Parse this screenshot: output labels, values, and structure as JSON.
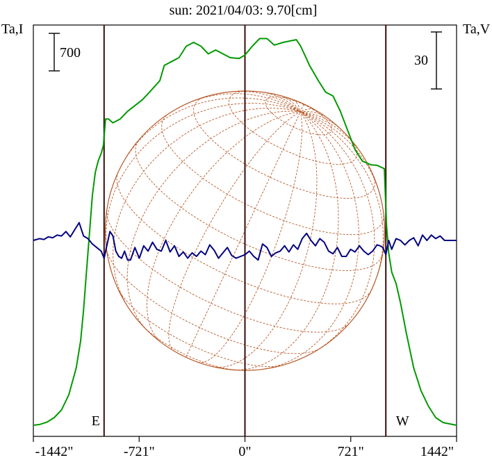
{
  "chart_data": {
    "type": "line",
    "title": "sun: 2021/04/03: 9.70[cm]",
    "left_axis_label": "Ta,I",
    "right_axis_label": "Ta,V",
    "scale_bar_left": "700",
    "scale_bar_right": "30",
    "x_unit": "arcsec",
    "xlim": [
      -1442,
      1442
    ],
    "x_ticks": [
      {
        "value": -1442,
        "label": "-1442\""
      },
      {
        "value": -721,
        "label": "-721\""
      },
      {
        "value": 0,
        "label": "0\""
      },
      {
        "value": 721,
        "label": "721\""
      },
      {
        "value": 1442,
        "label": "1442\""
      }
    ],
    "limb_markers": [
      {
        "value": -960,
        "label": "E"
      },
      {
        "value": 960,
        "label": "W"
      }
    ],
    "colors": {
      "stokes_i": "#009900",
      "stokes_v": "#000080",
      "disk_grid": "#b85a2a",
      "limb_lines": "#3a0a0a",
      "title": "#1a1a8c"
    },
    "series": [
      {
        "name": "Stokes I (Ta,I)",
        "color": "#009900",
        "y_unit": "relative (0 = baseline, 1 = peak)",
        "x": [
          -1442,
          -1400,
          -1350,
          -1300,
          -1250,
          -1200,
          -1150,
          -1120,
          -1100,
          -1080,
          -1060,
          -1040,
          -1020,
          -1000,
          -980,
          -965,
          -950,
          -930,
          -900,
          -850,
          -800,
          -700,
          -650,
          -580,
          -550,
          -450,
          -400,
          -350,
          -300,
          -250,
          -200,
          -100,
          -40,
          0,
          50,
          100,
          150,
          200,
          260,
          350,
          380,
          440,
          500,
          550,
          600,
          650,
          700,
          750,
          800,
          860,
          900,
          950,
          965,
          980,
          1000,
          1030,
          1060,
          1100,
          1150,
          1200,
          1250,
          1300,
          1350,
          1442
        ],
        "y": [
          0.0,
          0.002,
          0.008,
          0.02,
          0.04,
          0.08,
          0.15,
          0.22,
          0.3,
          0.4,
          0.5,
          0.6,
          0.66,
          0.69,
          0.71,
          0.73,
          0.8,
          0.8,
          0.79,
          0.8,
          0.82,
          0.85,
          0.87,
          0.9,
          0.94,
          0.96,
          0.99,
          1.0,
          0.99,
          0.97,
          0.98,
          0.96,
          0.958,
          0.967,
          0.99,
          1.01,
          1.01,
          0.993,
          1.0,
          1.007,
          0.99,
          0.94,
          0.9,
          0.87,
          0.86,
          0.82,
          0.77,
          0.72,
          0.69,
          0.68,
          0.679,
          0.67,
          0.52,
          0.45,
          0.4,
          0.37,
          0.32,
          0.24,
          0.15,
          0.09,
          0.05,
          0.02,
          0.007,
          0.0
        ]
      },
      {
        "name": "Stokes V (Ta,V)",
        "color": "#000080",
        "y_unit": "relative (positive = up)",
        "x": [
          -1442,
          -1400,
          -1370,
          -1340,
          -1310,
          -1280,
          -1250,
          -1220,
          -1190,
          -1160,
          -1130,
          -1100,
          -1070,
          -1040,
          -1010,
          -980,
          -960,
          -940,
          -920,
          -900,
          -880,
          -860,
          -840,
          -820,
          -800,
          -780,
          -750,
          -720,
          -690,
          -660,
          -630,
          -600,
          -570,
          -540,
          -510,
          -480,
          -450,
          -420,
          -390,
          -360,
          -330,
          -300,
          -270,
          -240,
          -210,
          -180,
          -150,
          -120,
          -90,
          -60,
          -30,
          0,
          30,
          60,
          90,
          120,
          150,
          180,
          210,
          240,
          270,
          300,
          330,
          360,
          390,
          420,
          450,
          480,
          510,
          540,
          570,
          600,
          630,
          660,
          690,
          720,
          750,
          780,
          810,
          840,
          870,
          900,
          920,
          940,
          960,
          980,
          1000,
          1030,
          1060,
          1090,
          1120,
          1150,
          1180,
          1210,
          1240,
          1270,
          1300,
          1330,
          1360,
          1400,
          1442
        ],
        "y": [
          0.0,
          0.02,
          0.01,
          0.04,
          0.03,
          0.06,
          0.05,
          0.1,
          0.04,
          0.12,
          0.2,
          0.05,
          0.02,
          -0.04,
          -0.08,
          -0.12,
          -0.2,
          -0.05,
          0.1,
          0.05,
          -0.12,
          -0.18,
          -0.2,
          -0.12,
          -0.22,
          -0.22,
          -0.08,
          -0.2,
          -0.06,
          -0.12,
          -0.02,
          -0.1,
          -0.12,
          0.0,
          -0.13,
          -0.06,
          -0.18,
          -0.13,
          -0.2,
          -0.14,
          -0.18,
          -0.12,
          -0.16,
          -0.05,
          -0.11,
          -0.2,
          -0.14,
          -0.08,
          -0.17,
          -0.2,
          -0.18,
          -0.16,
          -0.12,
          -0.18,
          -0.22,
          -0.04,
          -0.08,
          -0.18,
          -0.14,
          -0.12,
          -0.06,
          -0.13,
          -0.05,
          -0.1,
          0.02,
          0.08,
          0.0,
          -0.06,
          0.02,
          -0.02,
          -0.12,
          -0.15,
          -0.08,
          -0.18,
          -0.18,
          -0.1,
          -0.13,
          -0.06,
          -0.12,
          -0.16,
          -0.12,
          -0.05,
          -0.06,
          -0.08,
          -0.16,
          0.0,
          -0.1,
          0.02,
          0.0,
          -0.05,
          0.0,
          0.03,
          -0.06,
          0.06,
          0.0,
          0.06,
          0.02,
          0.05,
          0.0,
          0.0,
          0.0
        ]
      }
    ]
  }
}
